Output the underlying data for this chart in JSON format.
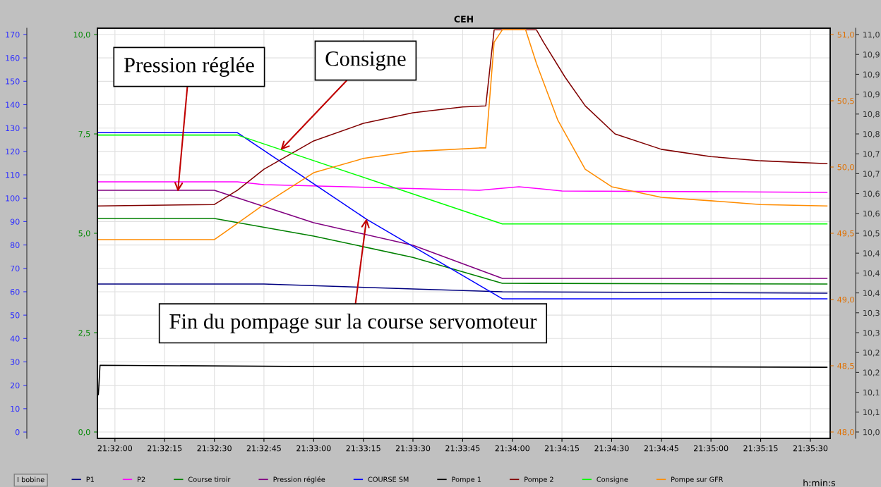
{
  "chart_data": {
    "type": "line",
    "title": "CEH",
    "xlabel": "h:min:s",
    "xlim": [
      21.53186,
      21.59333
    ],
    "xticks": [
      {
        "value": 21.53333,
        "label": "21:32:00"
      },
      {
        "value": 21.5375,
        "label": "21:32:15"
      },
      {
        "value": 21.54167,
        "label": "21:32:30"
      },
      {
        "value": 21.54583,
        "label": "21:32:45"
      },
      {
        "value": 21.55,
        "label": "21:33:00"
      },
      {
        "value": 21.55417,
        "label": "21:33:15"
      },
      {
        "value": 21.55833,
        "label": "21:33:30"
      },
      {
        "value": 21.5625,
        "label": "21:33:45"
      },
      {
        "value": 21.56667,
        "label": "21:34:00"
      },
      {
        "value": 21.57083,
        "label": "21:34:15"
      },
      {
        "value": 21.575,
        "label": "21:34:30"
      },
      {
        "value": 21.57917,
        "label": "21:34:45"
      },
      {
        "value": 21.58333,
        "label": "21:35:00"
      },
      {
        "value": 21.5875,
        "label": "21:35:15"
      },
      {
        "value": 21.59167,
        "label": "21:35:30"
      }
    ],
    "ylim": [
      -2.7,
      172.7
    ],
    "yticks": [
      0,
      10,
      20,
      30,
      40,
      50,
      60,
      70,
      80,
      90,
      100,
      110,
      120,
      130,
      140,
      150,
      160,
      170
    ],
    "y2lim": [
      -0.16,
      10.16
    ],
    "y2ticks": [
      {
        "value": 0,
        "label": "0,0"
      },
      {
        "value": 2.5,
        "label": "2,5"
      },
      {
        "value": 5,
        "label": "5,0"
      },
      {
        "value": 7.5,
        "label": "7,5"
      },
      {
        "value": 10,
        "label": "10,0"
      }
    ],
    "y3lim": [
      47.952,
      51.048
    ],
    "y3ticks": [
      {
        "value": 48,
        "label": "48,0"
      },
      {
        "value": 48.5,
        "label": "48,5"
      },
      {
        "value": 49,
        "label": "49,0"
      },
      {
        "value": 49.5,
        "label": "49,5"
      },
      {
        "value": 50,
        "label": "50,0"
      },
      {
        "value": 50.5,
        "label": "50,5"
      },
      {
        "value": 51,
        "label": "51,0"
      }
    ],
    "grid": true,
    "legend": "bottom",
    "series": [
      {
        "name": "P1",
        "color": "#000080",
        "x": [
          21.53194,
          21.54583,
          21.55833,
          21.56583,
          21.59306
        ],
        "values": [
          63.3,
          63.3,
          61.2,
          60,
          59.4
        ]
      },
      {
        "name": "P2",
        "color": "#ff00ff",
        "x": [
          21.53194,
          21.54361,
          21.54583,
          21.56389,
          21.56722,
          21.57083,
          21.59306
        ],
        "values": [
          107,
          107,
          105.8,
          103.4,
          104.9,
          103.1,
          102.5
        ]
      },
      {
        "name": "Course tiroir",
        "color": "#008000",
        "x": [
          21.53194,
          21.54167,
          21.55,
          21.55833,
          21.56583,
          21.59306
        ],
        "values": [
          91.3,
          91.3,
          83.8,
          74.7,
          63.6,
          63.3
        ]
      },
      {
        "name": "Pression réglée",
        "color": "#800080",
        "x": [
          21.53194,
          21.54167,
          21.55,
          21.55833,
          21.56583,
          21.59306
        ],
        "values": [
          103.4,
          103.4,
          89.5,
          79.9,
          65.7,
          65.7
        ]
      },
      {
        "name": "COURSE SM",
        "color": "#0000ff",
        "x": [
          21.53194,
          21.54361,
          21.55444,
          21.56583,
          21.59306
        ],
        "values": [
          128,
          128,
          91,
          57,
          57
        ]
      },
      {
        "name": "Pompe 1",
        "color": "#000000",
        "x": [
          21.53194,
          21.53208,
          21.55,
          21.575,
          21.59306
        ],
        "values": [
          16,
          28.6,
          28,
          28,
          27.7
        ]
      },
      {
        "name": "Pompe 2",
        "color": "#800000",
        "x": [
          21.53194,
          21.54167,
          21.54361,
          21.54583,
          21.55,
          21.55417,
          21.55833,
          21.5625,
          21.56444,
          21.56514,
          21.56869,
          21.56928,
          21.57111,
          21.57278,
          21.57528,
          21.57917,
          21.58333,
          21.5875,
          21.59306
        ],
        "values": [
          96.7,
          97.3,
          103.4,
          112.4,
          124.5,
          132,
          136.5,
          139,
          139.5,
          172,
          172,
          166.7,
          151.6,
          139.5,
          127.5,
          120.9,
          117.8,
          116,
          114.8
        ]
      },
      {
        "name": "Consigne",
        "color": "#00ff00",
        "x": [
          21.53194,
          21.54361,
          21.56583,
          21.59306
        ],
        "values": [
          127,
          127,
          89,
          89
        ]
      },
      {
        "name": "Pompe sur GFR",
        "color": "#ff8c00",
        "x": [
          21.53194,
          21.54167,
          21.5425,
          21.54583,
          21.55,
          21.55417,
          21.55833,
          21.56389,
          21.56444,
          21.56514,
          21.56583,
          21.56778,
          21.56869,
          21.57047,
          21.57278,
          21.575,
          21.57917,
          21.58333,
          21.5875,
          21.59306
        ],
        "values": [
          82.3,
          82.3,
          85.3,
          97.3,
          110.9,
          117,
          120,
          121.5,
          121.5,
          166.7,
          172,
          172,
          157.6,
          133.5,
          112.4,
          104.9,
          100.4,
          98.9,
          97.3,
          96.7
        ]
      }
    ],
    "annotations": [
      {
        "text": "Pression réglée",
        "x": 21.53861,
        "y": 102.8
      },
      {
        "text": "Consigne",
        "x": 21.54722,
        "y": 120.6
      },
      {
        "text": "Fin du pompage sur la course servomoteur",
        "x": 21.55444,
        "y": 91.3
      },
      "I bobine",
      "10,0",
      "10,1",
      "10,1",
      "10,2",
      "10,2",
      "10,3",
      "10,3",
      "10,4",
      "10,4",
      "10,4",
      "10,5",
      "10,6",
      "10,6",
      "10,7",
      "10,7",
      "10,8",
      "10,8",
      "10,9",
      "10,9",
      "10,9",
      "11,0"
    ]
  }
}
